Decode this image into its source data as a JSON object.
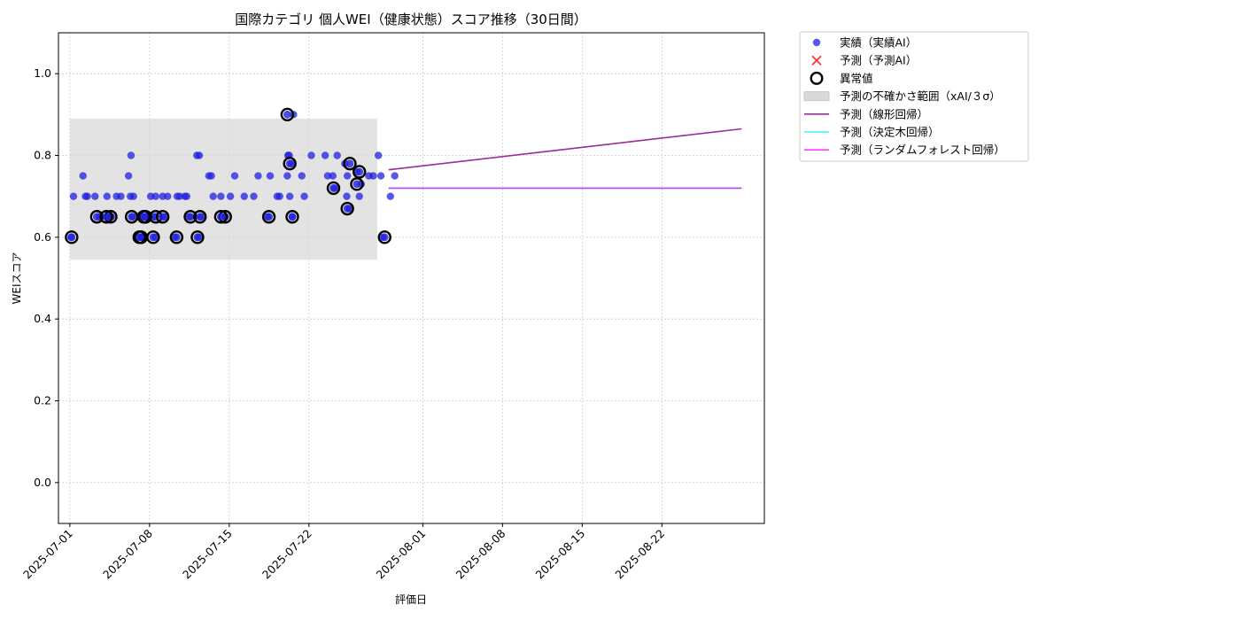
{
  "chart_data": {
    "type": "scatter",
    "title": "国際カテゴリ 個人WEI（健康状態）スコア推移（30日間）",
    "xlabel": "評価日",
    "ylabel": "WEIスコア",
    "ylim": [
      -0.1,
      1.1
    ],
    "xlim": [
      "2025-06-30",
      "2025-08-31"
    ],
    "y_ticks": [
      0.0,
      0.2,
      0.4,
      0.6,
      0.8,
      1.0
    ],
    "y_tick_labels": [
      "0.0",
      "0.2",
      "0.4",
      "0.6",
      "0.8",
      "1.0"
    ],
    "x_ticks": [
      "2025-07-01",
      "2025-07-08",
      "2025-07-15",
      "2025-07-22",
      "2025-08-01",
      "2025-08-08",
      "2025-08-15",
      "2025-08-22"
    ],
    "grid": true,
    "legend_position": "outside-right",
    "colors": {
      "actual": "#1f1fe0",
      "anomaly": "#000000",
      "band": "#d9d9d9",
      "linear": "#9b2a9b",
      "tree": "#3ff2ff",
      "forest": "#ff3dff",
      "predicted_x": "#ff3333"
    },
    "legend": [
      {
        "key": "actual",
        "label": "実績（実績AI）"
      },
      {
        "key": "pred",
        "label": "予測（予測AI）"
      },
      {
        "key": "anomaly",
        "label": "異常値"
      },
      {
        "key": "band",
        "label": "予測の不確かさ範囲（xAI/３σ）"
      },
      {
        "key": "linear",
        "label": "予測（線形回帰）"
      },
      {
        "key": "tree",
        "label": "予測（決定木回帰）"
      },
      {
        "key": "forest",
        "label": "予測（ランダムフォレスト回帰）"
      }
    ],
    "actual_points": [
      [
        "2025-07-01",
        0.6
      ],
      [
        "2025-07-01",
        0.7
      ],
      [
        "2025-07-02",
        0.7
      ],
      [
        "2025-07-02",
        0.75
      ],
      [
        "2025-07-02",
        0.7
      ],
      [
        "2025-07-03",
        0.65
      ],
      [
        "2025-07-03",
        0.7
      ],
      [
        "2025-07-04",
        0.65
      ],
      [
        "2025-07-04",
        0.65
      ],
      [
        "2025-07-04",
        0.7
      ],
      [
        "2025-07-05",
        0.7
      ],
      [
        "2025-07-05",
        0.7
      ],
      [
        "2025-07-06",
        0.7
      ],
      [
        "2025-07-06",
        0.65
      ],
      [
        "2025-07-06",
        0.75
      ],
      [
        "2025-07-06",
        0.8
      ],
      [
        "2025-07-06",
        0.7
      ],
      [
        "2025-07-07",
        0.65
      ],
      [
        "2025-07-07",
        0.6
      ],
      [
        "2025-07-07",
        0.65
      ],
      [
        "2025-07-07",
        0.6
      ],
      [
        "2025-07-08",
        0.6
      ],
      [
        "2025-07-08",
        0.7
      ],
      [
        "2025-07-08",
        0.65
      ],
      [
        "2025-07-08",
        0.7
      ],
      [
        "2025-07-09",
        0.7
      ],
      [
        "2025-07-09",
        0.65
      ],
      [
        "2025-07-09",
        0.7
      ],
      [
        "2025-07-10",
        0.6
      ],
      [
        "2025-07-10",
        0.7
      ],
      [
        "2025-07-10",
        0.7
      ],
      [
        "2025-07-11",
        0.7
      ],
      [
        "2025-07-11",
        0.65
      ],
      [
        "2025-07-11",
        0.7
      ],
      [
        "2025-07-12",
        0.6
      ],
      [
        "2025-07-12",
        0.65
      ],
      [
        "2025-07-12",
        0.8
      ],
      [
        "2025-07-12",
        0.8
      ],
      [
        "2025-07-13",
        0.7
      ],
      [
        "2025-07-13",
        0.75
      ],
      [
        "2025-07-13",
        0.75
      ],
      [
        "2025-07-14",
        0.65
      ],
      [
        "2025-07-14",
        0.7
      ],
      [
        "2025-07-15",
        0.75
      ],
      [
        "2025-07-15",
        0.7
      ],
      [
        "2025-07-16",
        0.7
      ],
      [
        "2025-07-17",
        0.75
      ],
      [
        "2025-07-17",
        0.7
      ],
      [
        "2025-07-18",
        0.65
      ],
      [
        "2025-07-18",
        0.75
      ],
      [
        "2025-07-19",
        0.7
      ],
      [
        "2025-07-19",
        0.7
      ],
      [
        "2025-07-20",
        0.9
      ],
      [
        "2025-07-20",
        0.8
      ],
      [
        "2025-07-20",
        0.78
      ],
      [
        "2025-07-20",
        0.75
      ],
      [
        "2025-07-20",
        0.7
      ],
      [
        "2025-07-20",
        0.65
      ],
      [
        "2025-07-20",
        0.8
      ],
      [
        "2025-07-21",
        0.75
      ],
      [
        "2025-07-21",
        0.7
      ],
      [
        "2025-07-22",
        0.8
      ],
      [
        "2025-07-23",
        0.8
      ],
      [
        "2025-07-23",
        0.75
      ],
      [
        "2025-07-24",
        0.72
      ],
      [
        "2025-07-24",
        0.8
      ],
      [
        "2025-07-24",
        0.75
      ],
      [
        "2025-07-25",
        0.7
      ],
      [
        "2025-07-25",
        0.67
      ],
      [
        "2025-07-25",
        0.78
      ],
      [
        "2025-07-25",
        0.75
      ],
      [
        "2025-07-26",
        0.73
      ],
      [
        "2025-07-26",
        0.76
      ],
      [
        "2025-07-26",
        0.7
      ],
      [
        "2025-07-27",
        0.75
      ],
      [
        "2025-07-27",
        0.75
      ],
      [
        "2025-07-28",
        0.6
      ],
      [
        "2025-07-28",
        0.8
      ],
      [
        "2025-07-28",
        0.75
      ],
      [
        "2025-07-29",
        0.75
      ],
      [
        "2025-07-29",
        0.7
      ]
    ],
    "anomaly_points": [
      [
        "2025-07-01",
        0.6
      ],
      [
        "2025-07-03",
        0.65
      ],
      [
        "2025-07-04",
        0.65
      ],
      [
        "2025-07-04",
        0.65
      ],
      [
        "2025-07-06",
        0.65
      ],
      [
        "2025-07-07",
        0.65
      ],
      [
        "2025-07-07",
        0.6
      ],
      [
        "2025-07-07",
        0.65
      ],
      [
        "2025-07-07",
        0.6
      ],
      [
        "2025-07-08",
        0.6
      ],
      [
        "2025-07-08",
        0.65
      ],
      [
        "2025-07-09",
        0.65
      ],
      [
        "2025-07-10",
        0.6
      ],
      [
        "2025-07-11",
        0.65
      ],
      [
        "2025-07-12",
        0.6
      ],
      [
        "2025-07-12",
        0.65
      ],
      [
        "2025-07-14",
        0.65
      ],
      [
        "2025-07-14",
        0.65
      ],
      [
        "2025-07-18",
        0.65
      ],
      [
        "2025-07-20",
        0.9
      ],
      [
        "2025-07-20",
        0.78
      ],
      [
        "2025-07-20",
        0.65
      ],
      [
        "2025-07-24",
        0.72
      ],
      [
        "2025-07-25",
        0.67
      ],
      [
        "2025-07-25",
        0.78
      ],
      [
        "2025-07-26",
        0.73
      ],
      [
        "2025-07-26",
        0.76
      ],
      [
        "2025-07-28",
        0.6
      ]
    ],
    "uncertainty_band": {
      "x_start": "2025-07-01",
      "x_end": "2025-07-28",
      "y_low": 0.545,
      "y_high": 0.89
    },
    "linear_regression": {
      "x": [
        "2025-07-29",
        "2025-08-29"
      ],
      "y": [
        0.765,
        0.865
      ]
    },
    "decision_tree": {
      "x": [
        "2025-07-29",
        "2025-08-29"
      ],
      "y": [
        0.72,
        0.72
      ]
    },
    "random_forest": {
      "x": [
        "2025-07-29",
        "2025-08-29"
      ],
      "y": [
        0.72,
        0.72
      ]
    }
  }
}
